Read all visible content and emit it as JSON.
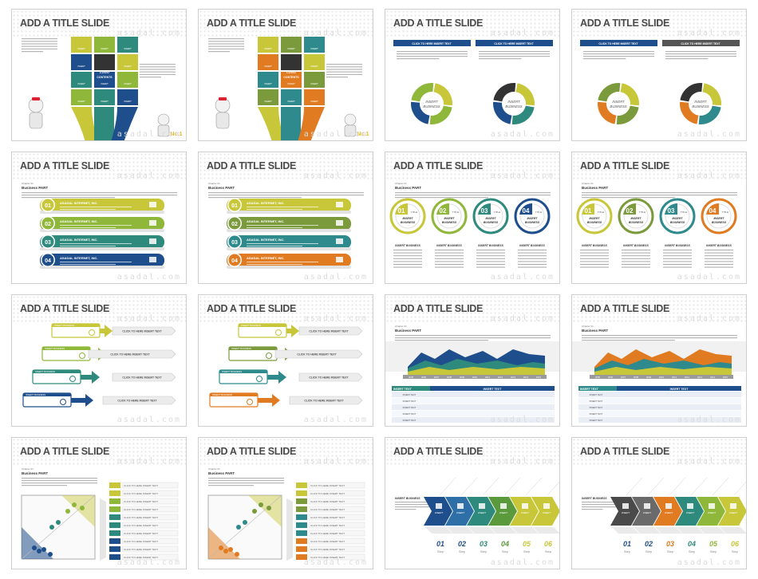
{
  "slides": [
    {
      "title": "ADD A TITLE SLIDE",
      "watermark": "asadal.com",
      "scheme": "blue-green",
      "variant": "contents-1"
    },
    {
      "title": "ADD A TITLE SLIDE",
      "watermark": "asadal.com",
      "scheme": "orange",
      "variant": "contents-2"
    },
    {
      "title": "ADD A TITLE SLIDE",
      "watermark": "asadal.com",
      "scheme": "blue-green",
      "variant": "cycle"
    },
    {
      "title": "ADD A TITLE SLIDE",
      "watermark": "asadal.com",
      "scheme": "orange",
      "variant": "cycle"
    },
    {
      "title": "ADD A TITLE SLIDE",
      "watermark": "asadal.com",
      "scheme": "blue-green",
      "variant": "list"
    },
    {
      "title": "ADD A TITLE SLIDE",
      "watermark": "asadal.com",
      "scheme": "orange",
      "variant": "list"
    },
    {
      "title": "ADD A TITLE SLIDE",
      "watermark": "asadal.com",
      "scheme": "blue-green",
      "variant": "circles"
    },
    {
      "title": "ADD A TITLE SLIDE",
      "watermark": "asadal.com",
      "scheme": "orange",
      "variant": "circles"
    },
    {
      "title": "ADD A TITLE SLIDE",
      "watermark": "asadal.com",
      "scheme": "blue-green",
      "variant": "arrows"
    },
    {
      "title": "ADD A TITLE SLIDE",
      "watermark": "asadal.com",
      "scheme": "orange",
      "variant": "arrows"
    },
    {
      "title": "ADD A TITLE SLIDE",
      "watermark": "asadal.com",
      "scheme": "blue-green",
      "variant": "area"
    },
    {
      "title": "ADD A TITLE SLIDE",
      "watermark": "asadal.com",
      "scheme": "orange",
      "variant": "area"
    },
    {
      "title": "ADD A TITLE SLIDE",
      "watermark": "asadal.com",
      "scheme": "blue-green",
      "variant": "matrix"
    },
    {
      "title": "ADD A TITLE SLIDE",
      "watermark": "asadal.com",
      "scheme": "orange",
      "variant": "matrix"
    },
    {
      "title": "ADD A TITLE SLIDE",
      "watermark": "asadal.com",
      "scheme": "blue-green",
      "variant": "steps"
    },
    {
      "title": "ADD A TITLE SLIDE",
      "watermark": "asadal.com",
      "scheme": "gray-orange",
      "variant": "steps"
    }
  ],
  "text": {
    "click_here": "CLICK TO HERE  INSERT  TEXT",
    "insert_business": "INSERT BUSINESS",
    "insert_text": "INSERT TEXT",
    "logo_contents": "LOGO CONTENTS",
    "business_part": "Business PART",
    "chapter": "Chapter 01",
    "asadal_inc": "ASADAL INTERNET, INC.",
    "step": "Step",
    "title_small": "TITLE",
    "nums": [
      "01",
      "02",
      "03",
      "04",
      "05",
      "06"
    ],
    "years": [
      "2005",
      "2006",
      "2007",
      "2008",
      "2009",
      "2010",
      "2011",
      "2012",
      "2013",
      "2014",
      "2015"
    ]
  },
  "colors": {
    "blue-green": [
      "#c8c73a",
      "#8fb83a",
      "#2e8a7c",
      "#1f4e8c"
    ],
    "orange": [
      "#c8c73a",
      "#7a9a3c",
      "#2e8a8c",
      "#e07b22"
    ],
    "gray-orange": [
      "#555555",
      "#7a7a7a",
      "#e07b22",
      "#2e8a7c"
    ]
  }
}
